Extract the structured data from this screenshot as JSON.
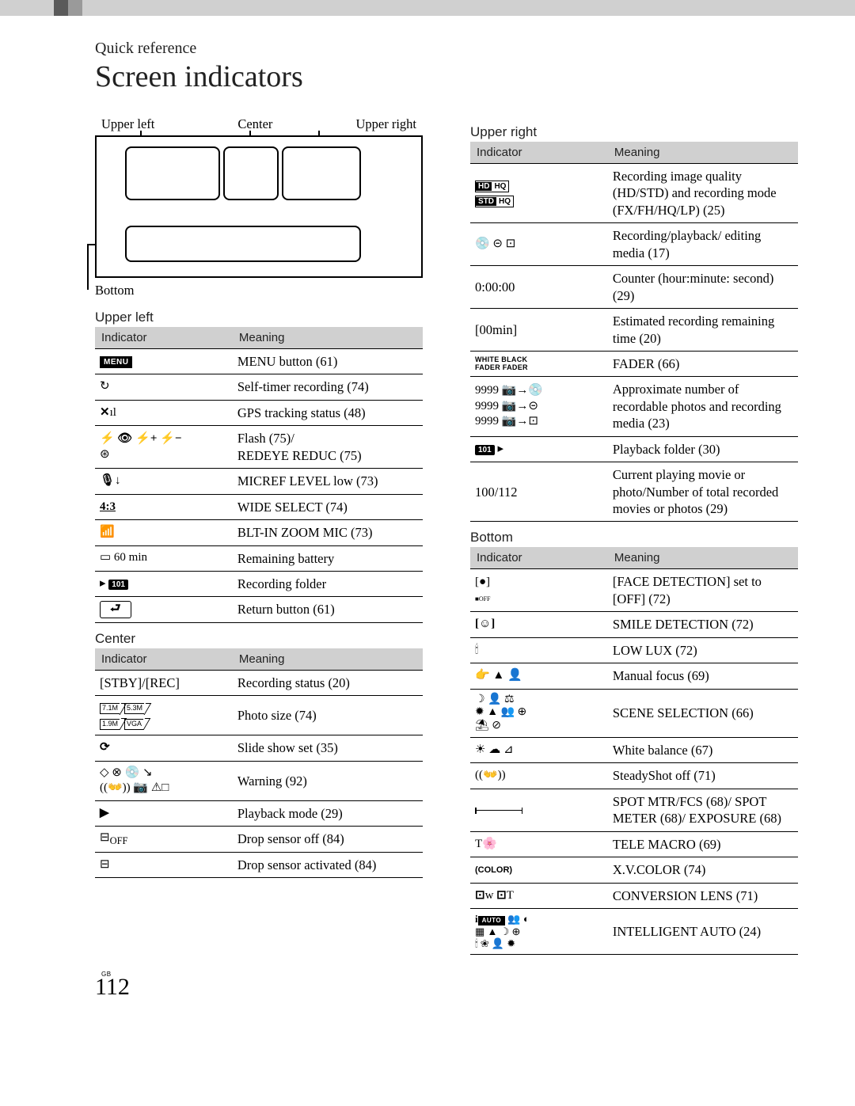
{
  "header": {
    "quick_ref": "Quick reference",
    "title": "Screen indicators"
  },
  "diagram": {
    "ul": "Upper left",
    "c": "Center",
    "ur": "Upper right",
    "bottom": "Bottom"
  },
  "tables": {
    "col_indicator": "Indicator",
    "col_meaning": "Meaning",
    "upper_left": {
      "heading": "Upper left",
      "rows": [
        {
          "ind": "MENU",
          "m": "MENU button (61)"
        },
        {
          "ind": "↻",
          "m": "Self-timer recording (74)"
        },
        {
          "ind": "✕ıl",
          "m": "GPS tracking status (48)"
        },
        {
          "ind": "⚡ 👁 ⚡+ ⚡−\n⊛",
          "m": "Flash (75)/\nREDEYE REDUC (75)"
        },
        {
          "ind": "🎙↓",
          "m": "MICREF LEVEL low (73)"
        },
        {
          "ind": "4:3",
          "m": "WIDE SELECT (74)"
        },
        {
          "ind": "📶",
          "m": "BLT-IN ZOOM MIC (73)"
        },
        {
          "ind": "🔋 60 min",
          "m": "Remaining battery"
        },
        {
          "ind": "▸ 📁",
          "m": "Recording folder"
        },
        {
          "ind": "↩",
          "m": "Return button (61)"
        }
      ]
    },
    "center": {
      "heading": "Center",
      "rows": [
        {
          "ind": "[STBY]/[REC]",
          "m": "Recording status (20)"
        },
        {
          "ind": "7.1M 5.3M\n1.9M VGA",
          "m": "Photo size (74)"
        },
        {
          "ind": "⟳",
          "m": "Slide show set (35)"
        },
        {
          "ind": "⊘ ⊗ 💿 ⊠\n((👐)) 📷 ⚠□",
          "m": "Warning (92)"
        },
        {
          "ind": "▶",
          "m": "Playback mode (29)"
        },
        {
          "ind": "⊟OFF",
          "m": "Drop sensor off (84)"
        },
        {
          "ind": "⊟",
          "m": "Drop sensor activated (84)"
        }
      ]
    },
    "upper_right": {
      "heading": "Upper right",
      "rows": [
        {
          "ind": "HD HQ\nSTD HQ",
          "m": "Recording image quality (HD/STD) and recording mode (FX/FH/HQ/LP) (25)"
        },
        {
          "ind": "💿 ⊝ ⊡",
          "m": "Recording/playback/ editing media (17)"
        },
        {
          "ind": "0:00:00",
          "m": "Counter (hour:minute: second) (29)"
        },
        {
          "ind": "[00min]",
          "m": "Estimated recording remaining time (20)"
        },
        {
          "ind": "WHITE BLACK\nFADER FADER",
          "m": "FADER (66)"
        },
        {
          "ind": "9999 📷→💿\n9999 📷→⊝\n9999 📷→⊡",
          "m": "Approximate number of recordable photos and recording media (23)"
        },
        {
          "ind": "101 ▸",
          "m": "Playback folder (30)"
        },
        {
          "ind": "100/112",
          "m": "Current playing movie or photo/Number of total recorded movies or photos (29)"
        }
      ]
    },
    "bottom": {
      "heading": "Bottom",
      "rows": [
        {
          "ind": "[●]OFF",
          "m": "[FACE DETECTION] set to [OFF] (72)"
        },
        {
          "ind": "[☺]",
          "m": "SMILE DETECTION (72)"
        },
        {
          "ind": "🕯",
          "m": "LOW LUX (72)"
        },
        {
          "ind": "👉 ▲ 👤",
          "m": "Manual focus (69)"
        },
        {
          "ind": "scene",
          "m": "SCENE SELECTION (66)"
        },
        {
          "ind": "☀ ☁ ⊿",
          "m": "White balance (67)"
        },
        {
          "ind": "((👐))",
          "m": "SteadyShot off (71)"
        },
        {
          "ind": "bar",
          "m": "SPOT MTR/FCS (68)/ SPOT METER (68)/ EXPOSURE (68)"
        },
        {
          "ind": "T🌸",
          "m": "TELE MACRO (69)"
        },
        {
          "ind": "(COLOR)",
          "m": "X.V.COLOR (74)"
        },
        {
          "ind": "⊡w ⊡T",
          "m": "CONVERSION LENS (71)"
        },
        {
          "ind": "iauto",
          "m": "INTELLIGENT AUTO (24)"
        }
      ]
    }
  },
  "footer": {
    "gb": "GB",
    "page": "112"
  },
  "colors": {
    "header_bg": "#d0d0d0",
    "text": "#222222"
  }
}
